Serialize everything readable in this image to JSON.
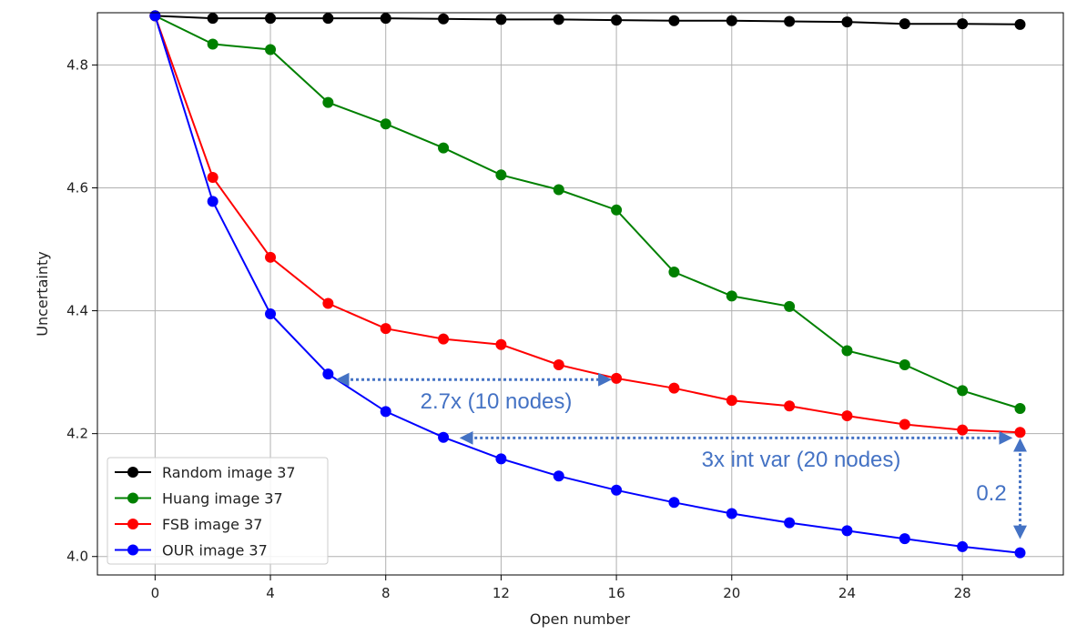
{
  "chart_data": {
    "type": "line",
    "title": "",
    "xlabel": "Open number",
    "ylabel": "Uncertainty",
    "xlim": [
      -2,
      31.5
    ],
    "ylim": [
      3.97,
      4.885
    ],
    "x_ticks": [
      0,
      4,
      8,
      12,
      16,
      20,
      24,
      28
    ],
    "y_ticks": [
      4.0,
      4.2,
      4.4,
      4.6,
      4.8
    ],
    "y_tick_labels": [
      "4.0",
      "4.2",
      "4.4",
      "4.6",
      "4.8"
    ],
    "grid": true,
    "legend_position": "lower-left",
    "x": [
      0,
      2,
      4,
      6,
      8,
      10,
      12,
      14,
      16,
      18,
      20,
      22,
      24,
      26,
      28,
      30
    ],
    "series": [
      {
        "name": "Random image 37",
        "color": "#000000",
        "values": [
          4.88,
          4.876,
          4.876,
          4.876,
          4.876,
          4.875,
          4.874,
          4.874,
          4.873,
          4.872,
          4.872,
          4.871,
          4.87,
          4.867,
          4.867,
          4.866
        ]
      },
      {
        "name": "Huang image 37",
        "color": "#008000",
        "values": [
          4.88,
          4.834,
          4.825,
          4.739,
          4.704,
          4.665,
          4.621,
          4.597,
          4.564,
          4.463,
          4.424,
          4.407,
          4.335,
          4.312,
          4.27,
          4.241
        ]
      },
      {
        "name": "FSB image 37",
        "color": "#ff0000",
        "values": [
          4.88,
          4.617,
          4.487,
          4.412,
          4.371,
          4.354,
          4.345,
          4.312,
          4.29,
          4.274,
          4.254,
          4.245,
          4.229,
          4.215,
          4.206,
          4.202
        ]
      },
      {
        "name": "OUR image 37",
        "color": "#0000ff",
        "values": [
          4.88,
          4.578,
          4.395,
          4.297,
          4.236,
          4.194,
          4.159,
          4.131,
          4.108,
          4.088,
          4.07,
          4.055,
          4.042,
          4.029,
          4.016,
          4.006
        ]
      }
    ],
    "annotations": [
      {
        "text": "2.7x (10 nodes)",
        "color": "#4472C4",
        "type": "horizontal-arrow",
        "x_from": 6.4,
        "x_to": 15.7,
        "y": 4.288
      },
      {
        "text": "3x int var (20 nodes)",
        "color": "#4472C4",
        "type": "horizontal-arrow",
        "x_from": 10.7,
        "x_to": 29.6,
        "y": 4.193
      },
      {
        "text": "0.2",
        "color": "#4472C4",
        "type": "vertical-arrow",
        "x": 30,
        "y_from": 4.186,
        "y_to": 4.035
      }
    ]
  }
}
